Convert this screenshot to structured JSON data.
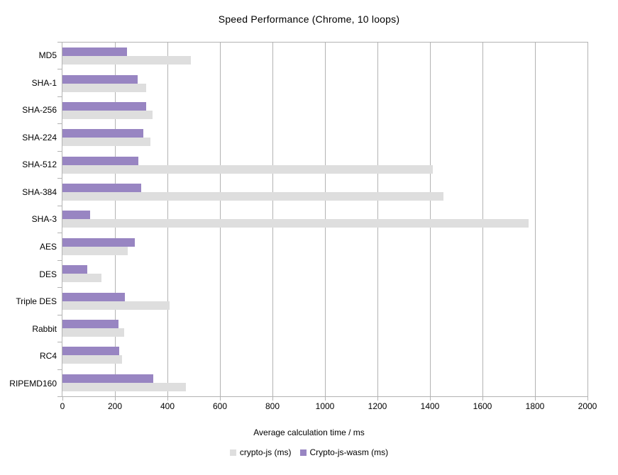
{
  "chart_data": {
    "type": "bar",
    "orientation": "horizontal",
    "title": "Speed Performance (Chrome, 10 loops)",
    "xlabel": "Average calculation time / ms",
    "ylabel": "",
    "xlim": [
      0,
      2000
    ],
    "x_ticks": [
      0,
      200,
      400,
      600,
      800,
      1000,
      1200,
      1400,
      1600,
      1800,
      2000
    ],
    "grid": "vertical",
    "legend_position": "bottom-center",
    "categories": [
      "MD5",
      "SHA-1",
      "SHA-256",
      "SHA-224",
      "SHA-512",
      "SHA-384",
      "SHA-3",
      "AES",
      "DES",
      "Triple DES",
      "Rabbit",
      "RC4",
      "RIPEMD160"
    ],
    "series": [
      {
        "name": "crypto-js (ms)",
        "color": "#dedede",
        "values": [
          490,
          318,
          342,
          334,
          1410,
          1450,
          1775,
          249,
          149,
          407,
          236,
          228,
          470
        ]
      },
      {
        "name": "Crypto-js-wasm (ms)",
        "color": "#9885c2",
        "values": [
          245,
          287,
          320,
          309,
          288,
          299,
          105,
          277,
          94,
          237,
          214,
          217,
          345
        ]
      }
    ],
    "series_display_order_top_to_bottom": [
      "Crypto-js-wasm (ms)",
      "crypto-js (ms)"
    ],
    "colors": {
      "plot_border": "#b3b3b3",
      "gridline": "#b3b3b3",
      "text": "#000000",
      "background": "#ffffff"
    }
  }
}
